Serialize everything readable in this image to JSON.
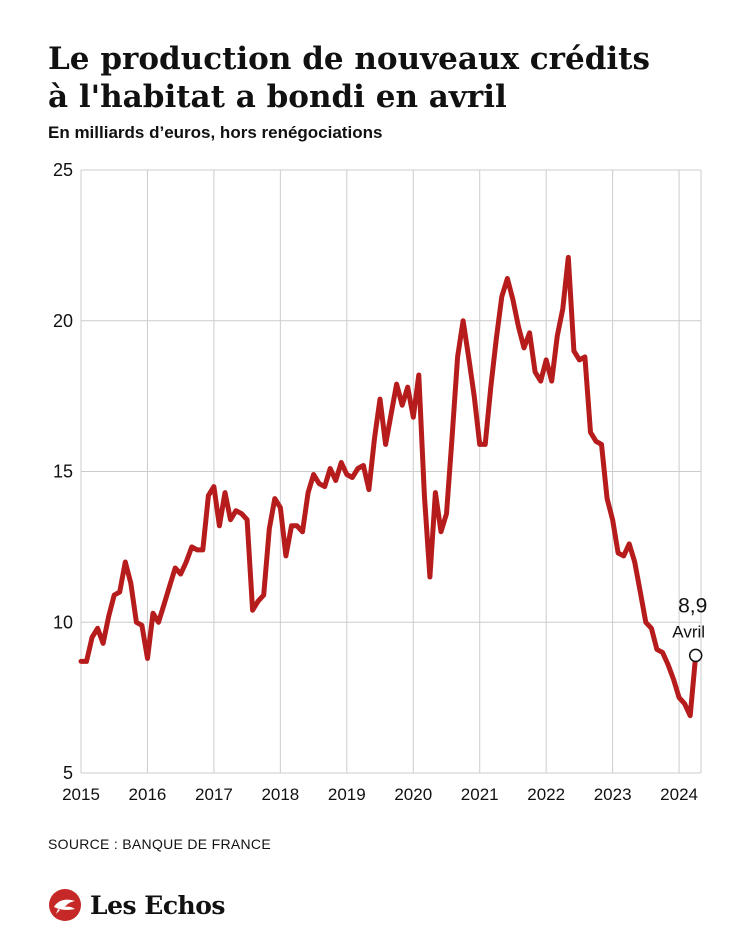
{
  "header": {
    "title_line1": "Le production de nouveaux crédits",
    "title_line2": "à l'habitat a bondi en avril",
    "subtitle": "En milliards d’euros, hors renégociations"
  },
  "footer": {
    "source": "SOURCE : BANQUE DE FRANCE",
    "brand": "Les Echos"
  },
  "colors": {
    "line": "#b71c1c",
    "grid": "#cccccc",
    "logo": "#c62828"
  },
  "chart_data": {
    "type": "line",
    "title": "Le production de nouveaux crédits à l'habitat a bondi en avril",
    "subtitle": "En milliards d’euros, hors renégociations",
    "xlabel": "",
    "ylabel": "",
    "ylim": [
      5,
      25
    ],
    "yticks": [
      5,
      10,
      15,
      20,
      25
    ],
    "ytick_labels": [
      "5",
      "10",
      "15",
      "20",
      "25"
    ],
    "xlim": [
      2015,
      2024.33
    ],
    "xticks": [
      "2015",
      "2016",
      "2017",
      "2018",
      "2019",
      "2020",
      "2021",
      "2022",
      "2023",
      "2024"
    ],
    "grid": true,
    "legend": "none",
    "series": [
      {
        "x": [
          2015.0,
          2015.083,
          2015.167,
          2015.25,
          2015.333,
          2015.417,
          2015.5,
          2015.583,
          2015.667,
          2015.75,
          2015.833,
          2015.917,
          2016.0,
          2016.083,
          2016.167,
          2016.25,
          2016.333,
          2016.417,
          2016.5,
          2016.583,
          2016.667,
          2016.75,
          2016.833,
          2016.917,
          2017.0,
          2017.083,
          2017.167,
          2017.25,
          2017.333,
          2017.417,
          2017.5,
          2017.583,
          2017.667,
          2017.75,
          2017.833,
          2017.917,
          2018.0,
          2018.083,
          2018.167,
          2018.25,
          2018.333,
          2018.417,
          2018.5,
          2018.583,
          2018.667,
          2018.75,
          2018.833,
          2018.917,
          2019.0,
          2019.083,
          2019.167,
          2019.25,
          2019.333,
          2019.417,
          2019.5,
          2019.583,
          2019.667,
          2019.75,
          2019.833,
          2019.917,
          2020.0,
          2020.083,
          2020.167,
          2020.25,
          2020.333,
          2020.417,
          2020.5,
          2020.583,
          2020.667,
          2020.75,
          2020.833,
          2020.917,
          2021.0,
          2021.083,
          2021.167,
          2021.25,
          2021.333,
          2021.417,
          2021.5,
          2021.583,
          2021.667,
          2021.75,
          2021.833,
          2021.917,
          2022.0,
          2022.083,
          2022.167,
          2022.25,
          2022.333,
          2022.417,
          2022.5,
          2022.583,
          2022.667,
          2022.75,
          2022.833,
          2022.917,
          2023.0,
          2023.083,
          2023.167,
          2023.25,
          2023.333,
          2023.417,
          2023.5,
          2023.583,
          2023.667,
          2023.75,
          2023.833,
          2023.917,
          2024.0,
          2024.083,
          2024.167,
          2024.25
        ],
        "values": [
          8.7,
          8.7,
          9.5,
          9.8,
          9.3,
          10.2,
          10.9,
          11.0,
          12.0,
          11.3,
          10.0,
          9.9,
          8.8,
          10.3,
          10.0,
          10.6,
          11.2,
          11.8,
          11.6,
          12.0,
          12.5,
          12.4,
          12.4,
          14.2,
          14.5,
          13.2,
          14.3,
          13.4,
          13.7,
          13.6,
          13.4,
          10.4,
          10.7,
          10.9,
          13.1,
          14.1,
          13.8,
          12.2,
          13.2,
          13.2,
          13.0,
          14.3,
          14.9,
          14.6,
          14.5,
          15.1,
          14.7,
          15.3,
          14.9,
          14.8,
          15.1,
          15.2,
          14.4,
          16.1,
          17.4,
          15.9,
          16.9,
          17.9,
          17.2,
          17.8,
          16.8,
          18.2,
          14.2,
          11.5,
          14.3,
          13.0,
          13.6,
          16.1,
          18.8,
          20.0,
          18.8,
          17.5,
          15.9,
          15.9,
          17.8,
          19.4,
          20.8,
          21.4,
          20.7,
          19.8,
          19.1,
          19.6,
          18.3,
          18.0,
          18.7,
          18.0,
          19.5,
          20.4,
          22.1,
          19.0,
          18.7,
          18.8,
          16.3,
          16.0,
          15.9,
          14.1,
          13.4,
          12.3,
          12.2,
          12.6,
          12.0,
          11.0,
          10.0,
          9.8,
          9.1,
          9.0,
          8.6,
          8.1,
          7.5,
          7.3,
          6.9,
          8.9
        ]
      }
    ],
    "annotations": [
      {
        "x": 2024.25,
        "y": 8.9,
        "value_text": "8,9",
        "label": "Avril"
      }
    ]
  }
}
